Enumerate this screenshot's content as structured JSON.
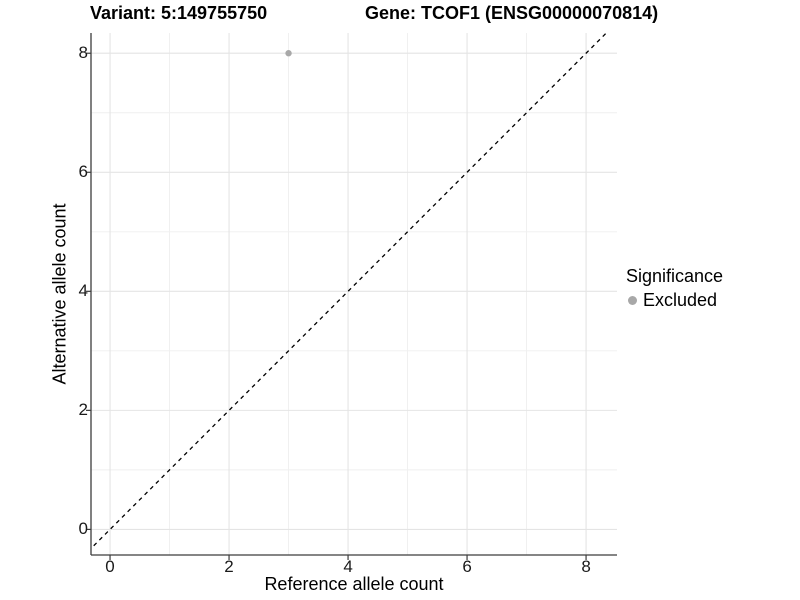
{
  "titles": {
    "variant": "Variant: 5:149755750",
    "gene": "Gene: TCOF1 (ENSG00000070814)"
  },
  "chart_data": {
    "type": "scatter",
    "xlabel": "Reference allele count",
    "ylabel": "Alternative allele count",
    "xlim": [
      -0.32,
      8.52
    ],
    "ylim": [
      -0.43,
      8.34
    ],
    "x_major_ticks": [
      0,
      2,
      4,
      6,
      8
    ],
    "y_major_ticks": [
      0,
      2,
      4,
      6,
      8
    ],
    "x_minor_ticks": [
      1,
      3,
      5,
      7
    ],
    "y_minor_ticks": [
      1,
      3,
      5,
      7
    ],
    "grid": true,
    "points": [
      {
        "x": 3,
        "y": 8,
        "series": "Excluded"
      }
    ],
    "reference_line": {
      "style": "dashed",
      "slope": 1,
      "intercept": 0
    },
    "legend": {
      "title": "Significance",
      "position": "right",
      "items": [
        {
          "label": "Excluded",
          "color": "#a8a8a8"
        }
      ]
    }
  },
  "colors": {
    "point": "#a8a8a8",
    "grid_major": "#e4e4e4",
    "grid_minor": "#efefef",
    "axis_line": "#3c3c3c",
    "reference_line": "#000000",
    "background": "#ffffff"
  }
}
